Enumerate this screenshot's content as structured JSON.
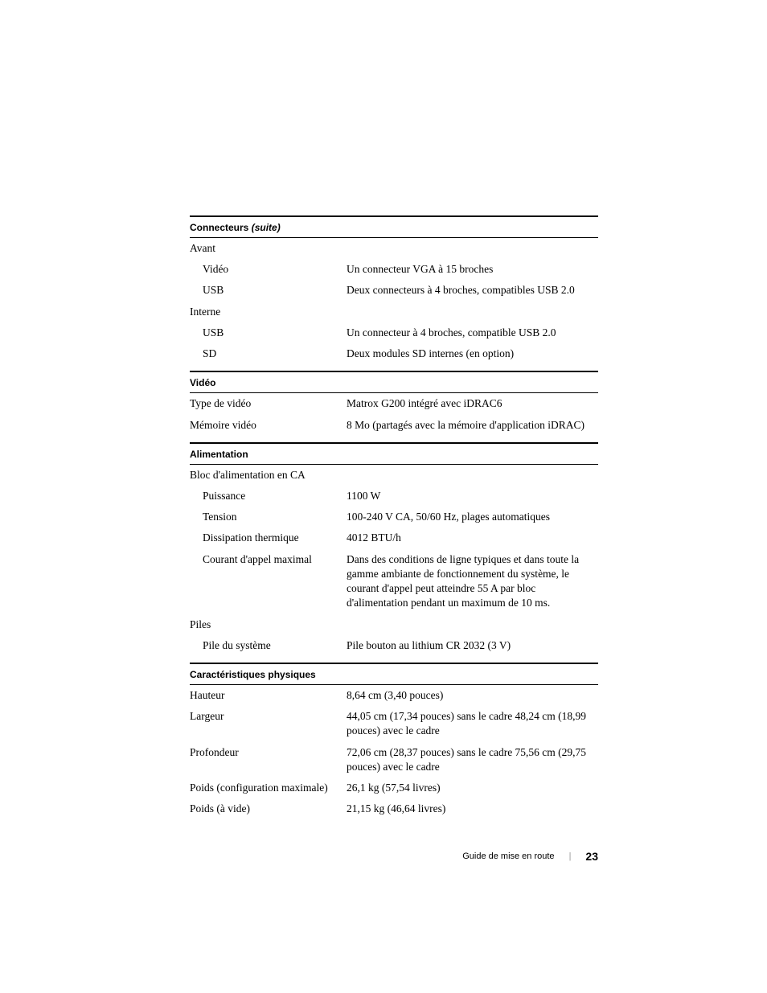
{
  "sections": {
    "connecteurs": {
      "title_prefix": "Connecteurs",
      "title_suffix": "(suite)",
      "avant_label": "Avant",
      "video_label": "Vidéo",
      "video_value": "Un connecteur VGA à 15 broches",
      "usb_label": "USB",
      "usb_value": "Deux connecteurs à 4 broches, compatibles USB 2.0",
      "interne_label": "Interne",
      "interne_usb_label": "USB",
      "interne_usb_value": "Un connecteur à 4 broches, compatible USB 2.0",
      "interne_sd_label": "SD",
      "interne_sd_value": "Deux modules SD internes (en option)"
    },
    "video": {
      "title": "Vidéo",
      "type_label": "Type de vidéo",
      "type_value": "Matrox G200 intégré avec iDRAC6",
      "memoire_label": "Mémoire vidéo",
      "memoire_value": "8 Mo (partagés avec la mémoire d'application iDRAC)"
    },
    "alimentation": {
      "title": "Alimentation",
      "bloc_label": "Bloc d'alimentation en CA",
      "puissance_label": "Puissance",
      "puissance_value": "1100 W",
      "tension_label": "Tension",
      "tension_value": "100-240 V CA, 50/60 Hz, plages automatiques",
      "dissipation_label": "Dissipation thermique",
      "dissipation_value": "4012 BTU/h",
      "courant_label": "Courant d'appel maximal",
      "courant_value": "Dans des conditions de ligne typiques et dans toute la gamme ambiante de fonctionnement du système, le courant d'appel peut atteindre 55 A par bloc d'alimentation pendant un maximum de 10 ms.",
      "piles_label": "Piles",
      "pile_sys_label": "Pile du système",
      "pile_sys_value": "Pile bouton au lithium CR 2032 (3 V)"
    },
    "physique": {
      "title": "Caractéristiques physiques",
      "hauteur_label": "Hauteur",
      "hauteur_value": "8,64 cm (3,40 pouces)",
      "largeur_label": "Largeur",
      "largeur_value": "44,05 cm (17,34 pouces) sans le cadre 48,24 cm (18,99 pouces) avec le cadre",
      "profondeur_label": "Profondeur",
      "profondeur_value": "72,06 cm (28,37 pouces) sans le cadre 75,56 cm (29,75 pouces) avec le cadre",
      "poids_max_label": "Poids (configuration maximale)",
      "poids_max_value": "26,1 kg (57,54 livres)",
      "poids_vide_label": "Poids (à vide)",
      "poids_vide_value": "21,15 kg (46,64 livres)"
    }
  },
  "footer": {
    "title": "Guide de mise en route",
    "page": "23"
  }
}
